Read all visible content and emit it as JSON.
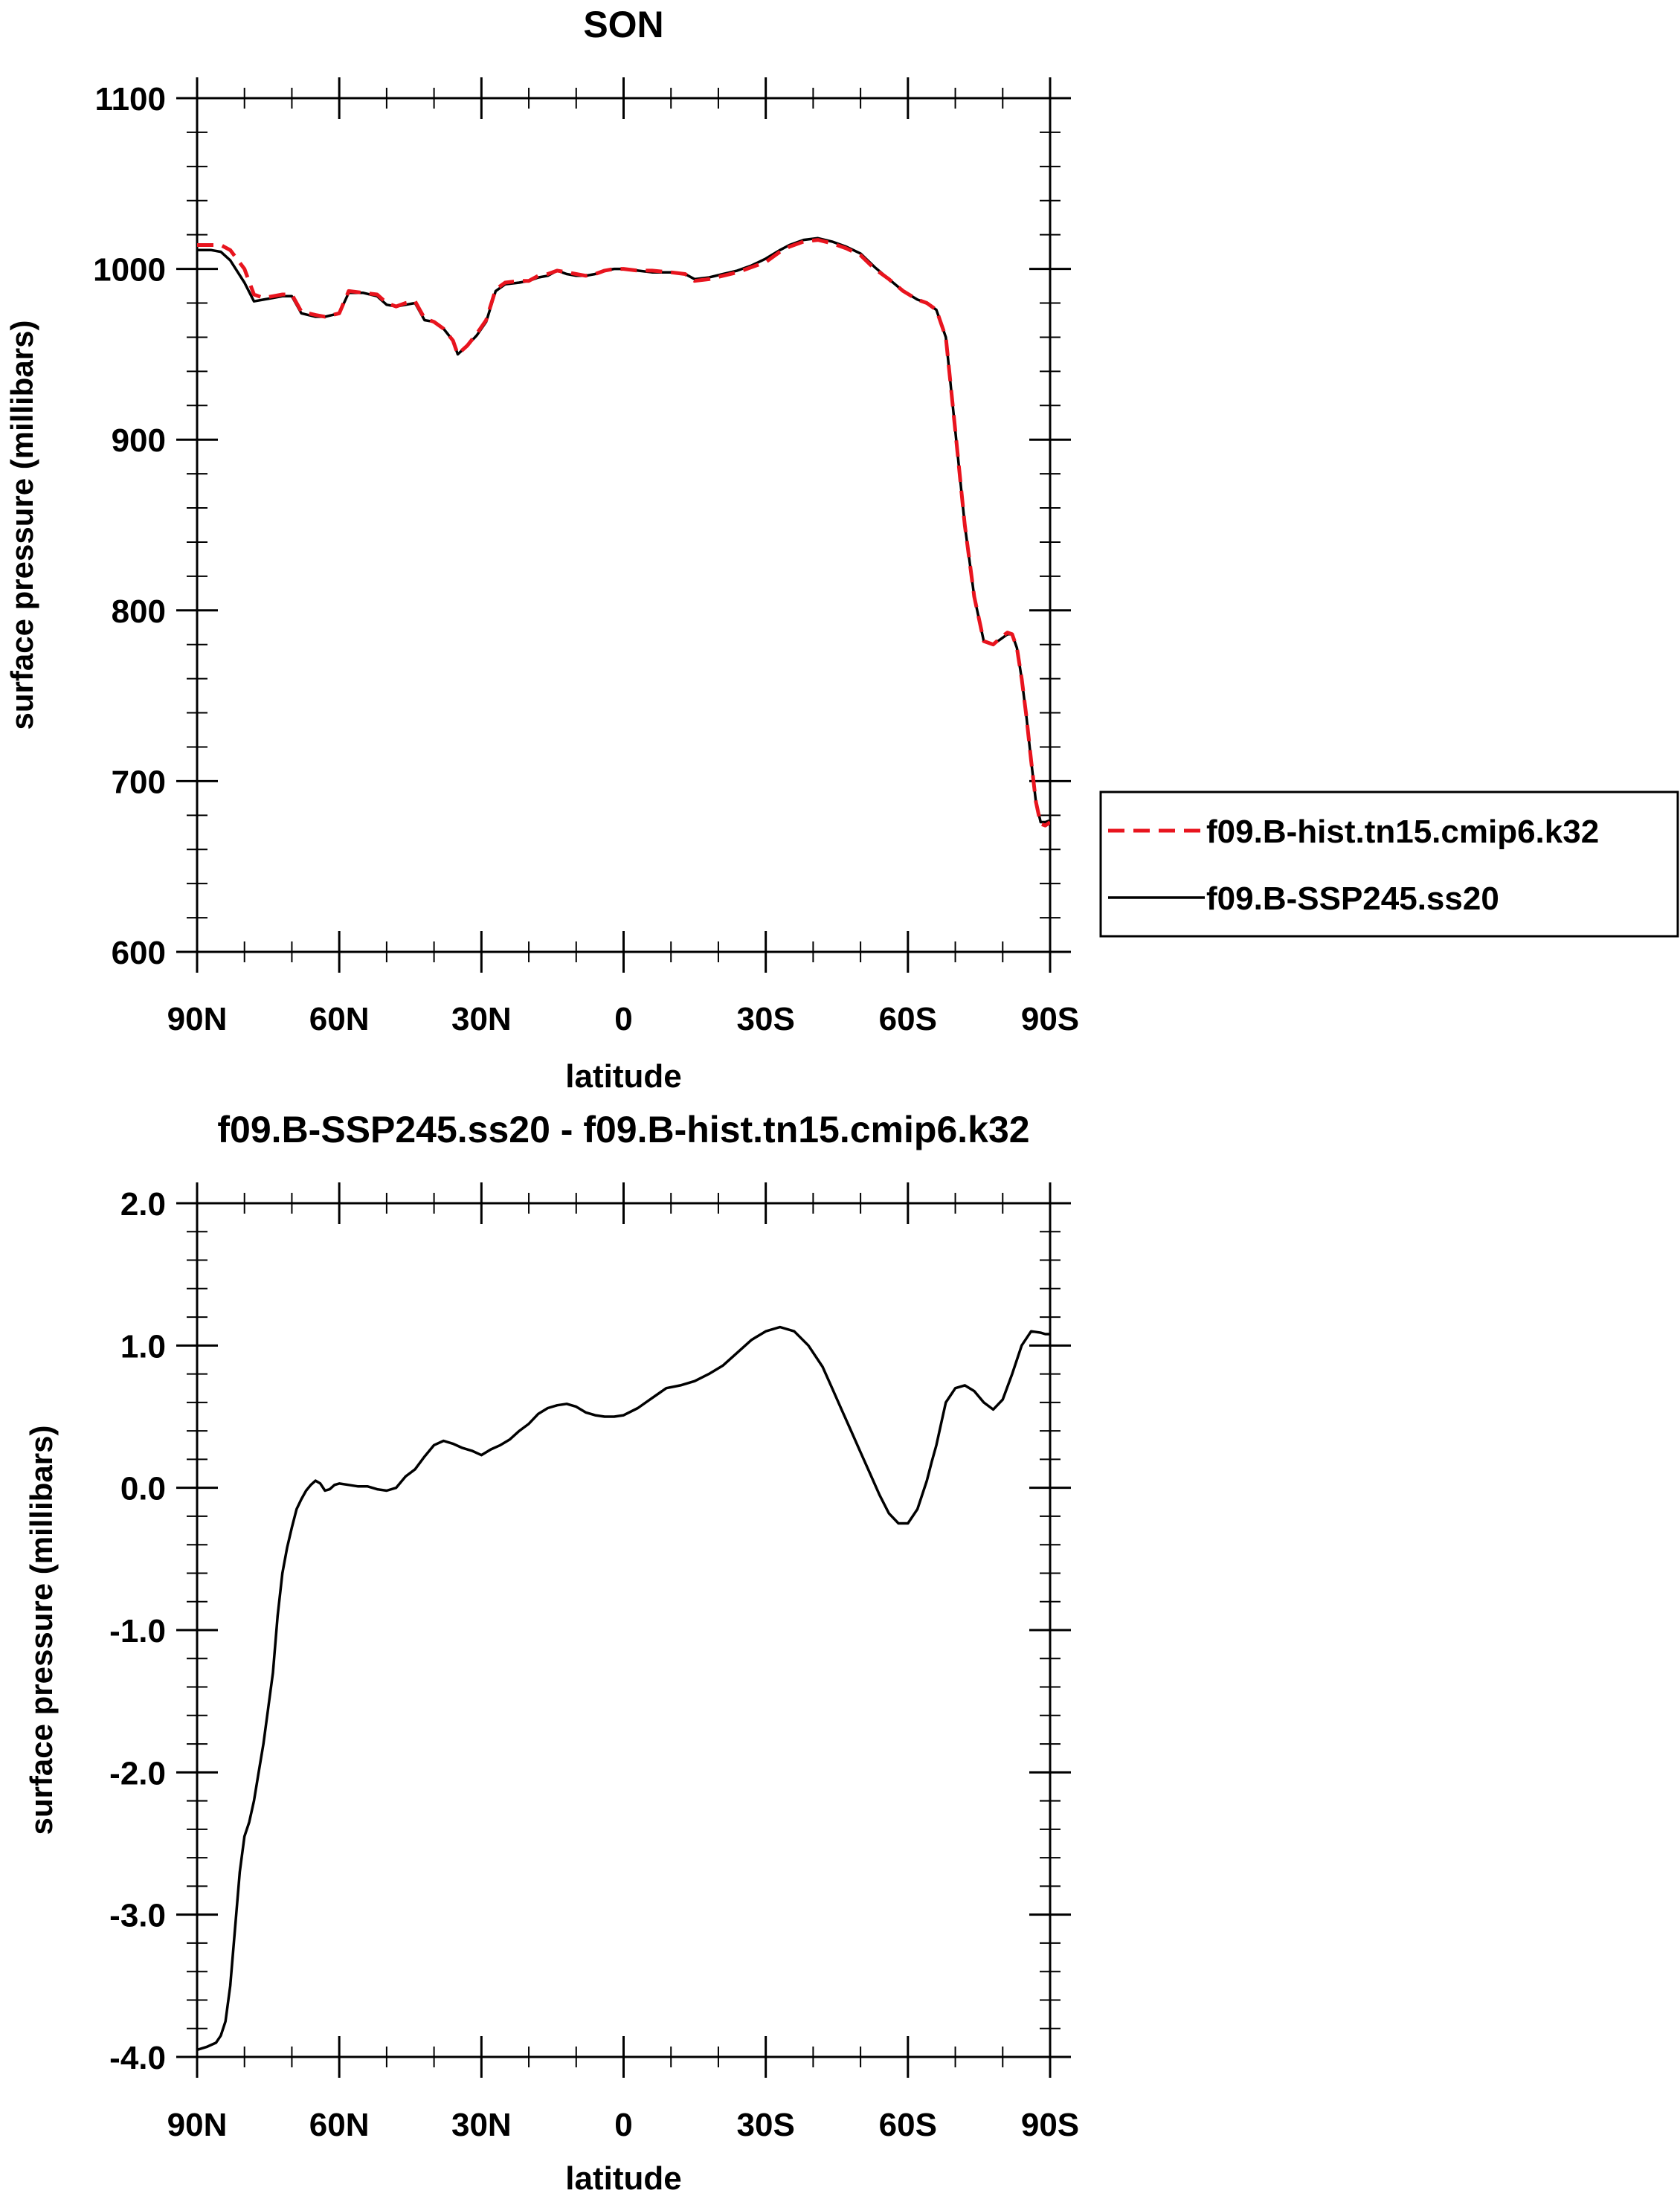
{
  "chart_data": [
    {
      "type": "line",
      "title": "SON",
      "xlabel": "latitude",
      "ylabel": "surface pressure (millibars)",
      "x_tick_labels": [
        "90N",
        "60N",
        "30N",
        "0",
        "30S",
        "60S",
        "90S"
      ],
      "x_ticks": [
        90,
        60,
        30,
        0,
        -30,
        -60,
        -90
      ],
      "xlim": [
        90,
        -90
      ],
      "ylim": [
        600,
        1100
      ],
      "y_ticks": [
        600,
        700,
        800,
        900,
        1000,
        1100
      ],
      "y_tick_labels": [
        "600",
        "700",
        "800",
        "900",
        "1000",
        "1100"
      ],
      "grid": false,
      "legend_position": "right-outside",
      "series": [
        {
          "name": "f09.B-hist.tn15.cmip6.k32",
          "color": "#e8141e",
          "dash": "dashed",
          "x": [
            90,
            87,
            85,
            83,
            80,
            78,
            76,
            74,
            72,
            70,
            68,
            65,
            63,
            60,
            58,
            55,
            52,
            50,
            48,
            46,
            44,
            42,
            40,
            38,
            36,
            35,
            33,
            31,
            29,
            27,
            25,
            22,
            20,
            18,
            16,
            14,
            12,
            10,
            8,
            6,
            4,
            2,
            0,
            -3,
            -6,
            -10,
            -13,
            -15,
            -18,
            -21,
            -24,
            -27,
            -30,
            -33,
            -35,
            -38,
            -41,
            -44,
            -47,
            -50,
            -53,
            -56,
            -59,
            -62,
            -64,
            -66,
            -68,
            -70,
            -72,
            -74,
            -76,
            -78,
            -80,
            -81,
            -82,
            -83,
            -84,
            -85,
            -86,
            -87,
            -88,
            -89,
            -90
          ],
          "y": [
            1014,
            1014,
            1014,
            1011,
            1000,
            985,
            983,
            984,
            985,
            985,
            975,
            973,
            972,
            974,
            987,
            986,
            985,
            980,
            978,
            980,
            981,
            971,
            969,
            965,
            958,
            950,
            955,
            962,
            970,
            988,
            992,
            993,
            993,
            996,
            997,
            999,
            998,
            997,
            996,
            997,
            999,
            1000,
            1000,
            999,
            999,
            998,
            997,
            993,
            994,
            996,
            998,
            1001,
            1004,
            1010,
            1013,
            1016,
            1017,
            1015,
            1012,
            1008,
            1000,
            994,
            987,
            982,
            980,
            976,
            960,
            905,
            850,
            808,
            782,
            780,
            785,
            787,
            786,
            778,
            760,
            738,
            712,
            688,
            675,
            674,
            676
          ]
        },
        {
          "name": "f09.B-SSP245.ss20",
          "color": "#000000",
          "dash": "solid",
          "x": [
            90,
            87,
            85,
            83,
            80,
            78,
            76,
            74,
            72,
            70,
            68,
            65,
            63,
            60,
            58,
            55,
            52,
            50,
            48,
            46,
            44,
            42,
            40,
            38,
            36,
            35,
            33,
            31,
            29,
            27,
            25,
            22,
            20,
            18,
            16,
            14,
            12,
            10,
            8,
            6,
            4,
            2,
            0,
            -3,
            -6,
            -10,
            -13,
            -15,
            -18,
            -21,
            -24,
            -27,
            -30,
            -33,
            -35,
            -38,
            -41,
            -44,
            -47,
            -50,
            -53,
            -56,
            -59,
            -62,
            -64,
            -66,
            -68,
            -70,
            -72,
            -74,
            -76,
            -78,
            -80,
            -81,
            -82,
            -83,
            -84,
            -85,
            -86,
            -87,
            -88,
            -89,
            -90
          ],
          "y": [
            1011,
            1011,
            1010,
            1005,
            992,
            981,
            982,
            983,
            984,
            984,
            974,
            972,
            972,
            974,
            986,
            986,
            984,
            979,
            978,
            979,
            980,
            970,
            969,
            965,
            958,
            950,
            955,
            961,
            969,
            987,
            991,
            992,
            993,
            995,
            996,
            999,
            997,
            996,
            996,
            997,
            999,
            1000,
            1000,
            999,
            998,
            998,
            997,
            994,
            995,
            997,
            999,
            1002,
            1006,
            1011,
            1014,
            1017,
            1018,
            1016,
            1013,
            1009,
            1001,
            994,
            987,
            982,
            980,
            976,
            960,
            905,
            850,
            808,
            782,
            780,
            784,
            786,
            786,
            778,
            760,
            738,
            712,
            688,
            676,
            676,
            677
          ]
        }
      ]
    },
    {
      "type": "line",
      "title": "f09.B-SSP245.ss20 - f09.B-hist.tn15.cmip6.k32",
      "xlabel": "latitude",
      "ylabel": "surface pressure (millibars)",
      "x_tick_labels": [
        "90N",
        "60N",
        "30N",
        "0",
        "30S",
        "60S",
        "90S"
      ],
      "x_ticks": [
        90,
        60,
        30,
        0,
        -30,
        -60,
        -90
      ],
      "xlim": [
        90,
        -90
      ],
      "ylim": [
        -4.0,
        2.0
      ],
      "y_ticks": [
        -4.0,
        -3.0,
        -2.0,
        -1.0,
        0.0,
        1.0,
        2.0
      ],
      "y_tick_labels": [
        "-4.0",
        "-3.0",
        "-2.0",
        "-1.0",
        "0.0",
        "1.0",
        "2.0"
      ],
      "grid": false,
      "series": [
        {
          "color": "#000000",
          "dash": "solid",
          "x": [
            90,
            88,
            86,
            85,
            84,
            83,
            82,
            81,
            80,
            79,
            78,
            77,
            76,
            75,
            74,
            73,
            72,
            71,
            70,
            69,
            68,
            67,
            66,
            65,
            64,
            63,
            62,
            61,
            60,
            58,
            56,
            54,
            52,
            50,
            48,
            46,
            44,
            42,
            40,
            38,
            36,
            34,
            32,
            30,
            28,
            26,
            24,
            22,
            20,
            18,
            16,
            14,
            12,
            10,
            8,
            6,
            4,
            2,
            0,
            -3,
            -6,
            -9,
            -12,
            -15,
            -18,
            -21,
            -24,
            -27,
            -30,
            -33,
            -36,
            -39,
            -42,
            -44,
            -46,
            -48,
            -50,
            -52,
            -54,
            -56,
            -58,
            -60,
            -62,
            -64,
            -65,
            -66,
            -67,
            -68,
            -70,
            -72,
            -74,
            -76,
            -78,
            -80,
            -82,
            -84,
            -86,
            -88,
            -89,
            -90
          ],
          "y": [
            -3.95,
            -3.93,
            -3.9,
            -3.85,
            -3.75,
            -3.5,
            -3.1,
            -2.7,
            -2.45,
            -2.35,
            -2.2,
            -2.0,
            -1.8,
            -1.55,
            -1.3,
            -0.9,
            -0.6,
            -0.42,
            -0.28,
            -0.15,
            -0.08,
            -0.02,
            0.02,
            0.05,
            0.03,
            -0.02,
            -0.01,
            0.02,
            0.03,
            0.02,
            0.01,
            0.01,
            -0.01,
            -0.02,
            0.0,
            0.08,
            0.13,
            0.22,
            0.3,
            0.33,
            0.31,
            0.28,
            0.26,
            0.23,
            0.27,
            0.3,
            0.34,
            0.4,
            0.45,
            0.52,
            0.56,
            0.58,
            0.59,
            0.57,
            0.53,
            0.51,
            0.5,
            0.5,
            0.51,
            0.56,
            0.63,
            0.7,
            0.72,
            0.75,
            0.8,
            0.86,
            0.95,
            1.04,
            1.1,
            1.13,
            1.1,
            1.0,
            0.85,
            0.7,
            0.55,
            0.4,
            0.25,
            0.1,
            -0.05,
            -0.18,
            -0.25,
            -0.25,
            -0.15,
            0.05,
            0.18,
            0.3,
            0.45,
            0.6,
            0.7,
            0.72,
            0.68,
            0.6,
            0.55,
            0.62,
            0.8,
            1.0,
            1.1,
            1.09,
            1.08,
            1.08
          ]
        }
      ]
    }
  ]
}
